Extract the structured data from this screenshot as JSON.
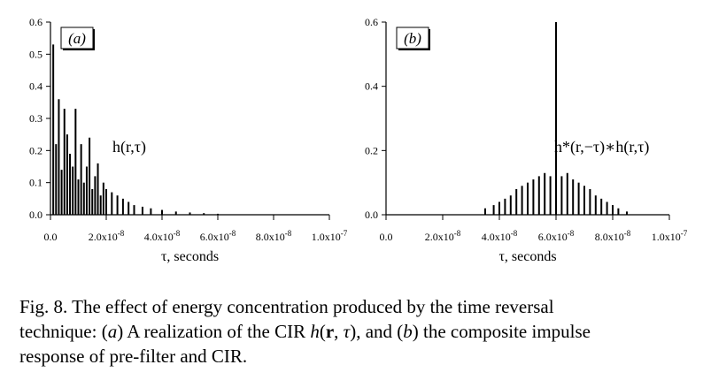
{
  "chart_data": [
    {
      "type": "bar",
      "panel_label": "(a)",
      "annotation": "h(r,τ)",
      "xlabel": "τ, seconds",
      "ylabel": "",
      "xlim": [
        0,
        1e-07
      ],
      "ylim": [
        0,
        0.6
      ],
      "x_ticks": [
        {
          "value": 0,
          "label": "0.0"
        },
        {
          "value": 2e-08,
          "label": "2.0x10",
          "exp": "-8"
        },
        {
          "value": 4e-08,
          "label": "4.0x10",
          "exp": "-8"
        },
        {
          "value": 6e-08,
          "label": "6.0x10",
          "exp": "-8"
        },
        {
          "value": 8e-08,
          "label": "8.0x10",
          "exp": "-8"
        },
        {
          "value": 1e-07,
          "label": "1.0x10",
          "exp": "-7"
        }
      ],
      "y_ticks": [
        {
          "value": 0.0,
          "label": "0.0"
        },
        {
          "value": 0.1,
          "label": "0.1"
        },
        {
          "value": 0.2,
          "label": "0.2"
        },
        {
          "value": 0.3,
          "label": "0.3"
        },
        {
          "value": 0.4,
          "label": "0.4"
        },
        {
          "value": 0.5,
          "label": "0.5"
        },
        {
          "value": 0.6,
          "label": "0.6"
        }
      ],
      "x": [
        1e-09,
        2e-09,
        3e-09,
        4e-09,
        5e-09,
        6e-09,
        7e-09,
        8e-09,
        9e-09,
        1e-08,
        1.1e-08,
        1.2e-08,
        1.3e-08,
        1.4e-08,
        1.5e-08,
        1.6e-08,
        1.7e-08,
        1.8e-08,
        1.9e-08,
        2e-08,
        2.2e-08,
        2.4e-08,
        2.6e-08,
        2.8e-08,
        3e-08,
        3.3e-08,
        3.6e-08,
        4e-08,
        4.5e-08,
        5e-08,
        5.5e-08,
        6e-08
      ],
      "values": [
        0.53,
        0.22,
        0.36,
        0.14,
        0.33,
        0.25,
        0.19,
        0.15,
        0.33,
        0.11,
        0.22,
        0.1,
        0.15,
        0.24,
        0.08,
        0.12,
        0.16,
        0.06,
        0.1,
        0.08,
        0.07,
        0.06,
        0.05,
        0.04,
        0.03,
        0.025,
        0.02,
        0.015,
        0.01,
        0.007,
        0.005,
        0.003
      ]
    },
    {
      "type": "bar",
      "panel_label": "(b)",
      "annotation": "h*(r,−τ)∗h(r,τ)",
      "xlabel": "τ, seconds",
      "ylabel": "",
      "xlim": [
        0,
        1e-07
      ],
      "ylim": [
        0,
        0.6
      ],
      "x_ticks": [
        {
          "value": 0,
          "label": "0.0"
        },
        {
          "value": 2e-08,
          "label": "2.0x10",
          "exp": "-8"
        },
        {
          "value": 4e-08,
          "label": "4.0x10",
          "exp": "-8"
        },
        {
          "value": 6e-08,
          "label": "6.0x10",
          "exp": "-8"
        },
        {
          "value": 8e-08,
          "label": "8.0x10",
          "exp": "-8"
        },
        {
          "value": 1e-07,
          "label": "1.0x10",
          "exp": "-7"
        }
      ],
      "y_ticks": [
        {
          "value": 0.0,
          "label": "0.0"
        },
        {
          "value": 0.2,
          "label": "0.2"
        },
        {
          "value": 0.4,
          "label": "0.4"
        },
        {
          "value": 0.6,
          "label": "0.6"
        }
      ],
      "x": [
        3.5e-08,
        3.8e-08,
        4e-08,
        4.2e-08,
        4.4e-08,
        4.6e-08,
        4.8e-08,
        5e-08,
        5.2e-08,
        5.4e-08,
        5.6e-08,
        5.8e-08,
        6e-08,
        6.2e-08,
        6.4e-08,
        6.6e-08,
        6.8e-08,
        7e-08,
        7.2e-08,
        7.4e-08,
        7.6e-08,
        7.8e-08,
        8e-08,
        8.2e-08,
        8.5e-08
      ],
      "values": [
        0.02,
        0.03,
        0.04,
        0.05,
        0.06,
        0.08,
        0.09,
        0.1,
        0.11,
        0.12,
        0.13,
        0.12,
        0.6,
        0.12,
        0.13,
        0.11,
        0.1,
        0.09,
        0.08,
        0.06,
        0.05,
        0.04,
        0.03,
        0.02,
        0.01
      ]
    }
  ],
  "caption": {
    "line1": "Fig. 8.  The effect of energy concentration produced by the time reversal",
    "line2_a": "technique: (",
    "line2_b": "a",
    "line2_c": ") A realization of the CIR ",
    "line2_d": "h",
    "line2_e": "(",
    "line2_f": "r",
    "line2_g": ", ",
    "line2_h": "τ",
    "line2_i": "), and (",
    "line2_j": "b",
    "line2_k": ") the composite impulse",
    "line3": "response of pre-filter and CIR."
  }
}
